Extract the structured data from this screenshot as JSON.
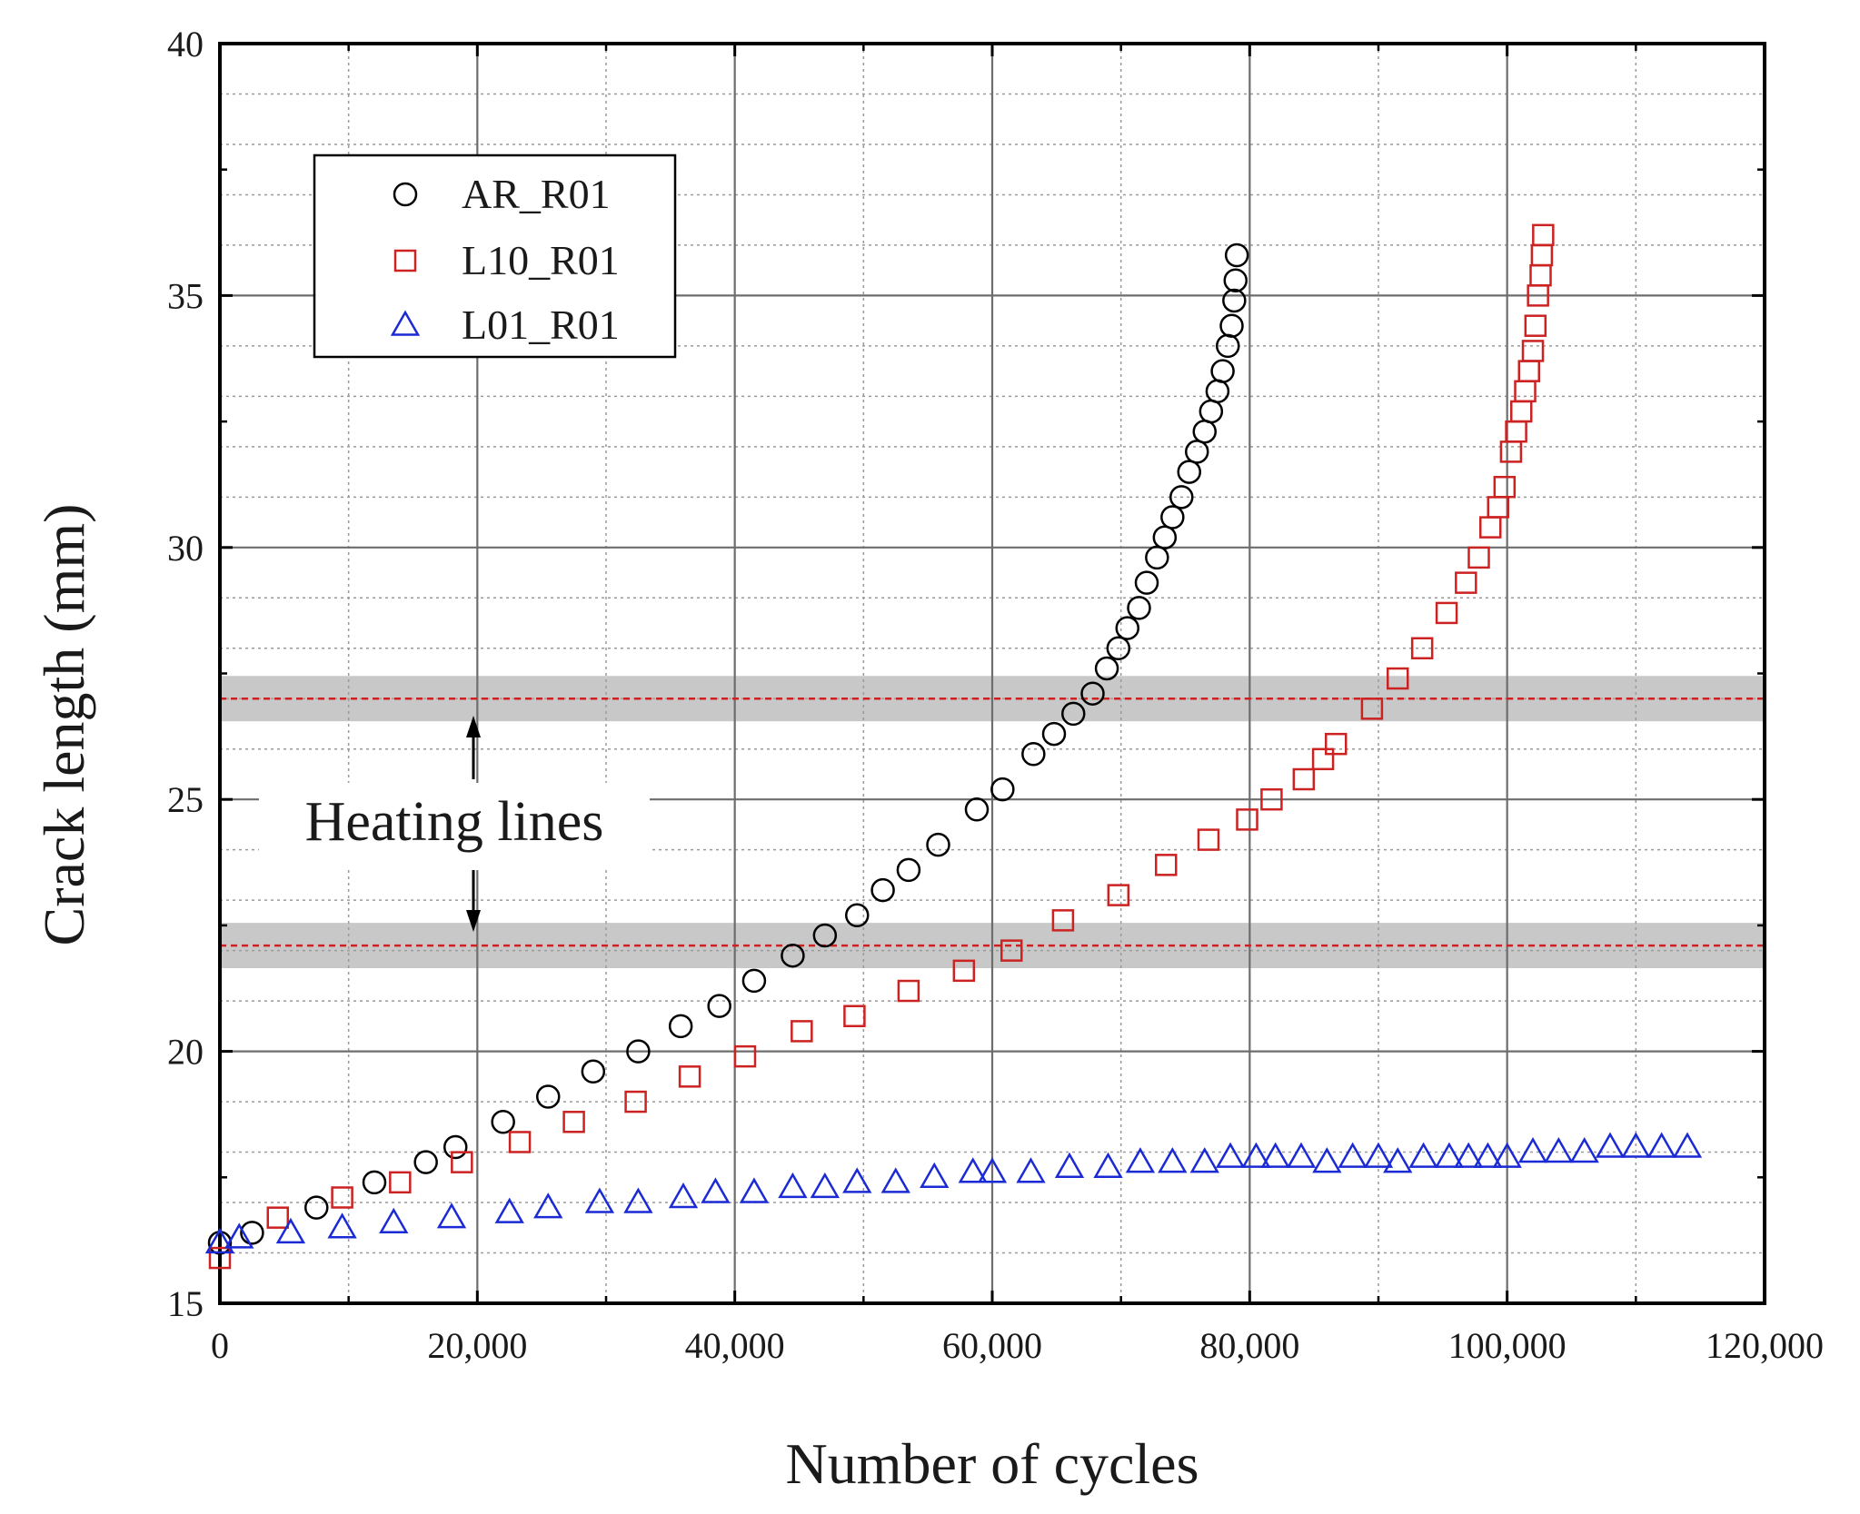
{
  "chart_data": {
    "type": "scatter",
    "title": "",
    "xlabel": "Number of cycles",
    "ylabel": "Crack length (mm)",
    "xlim": [
      0,
      120000
    ],
    "ylim": [
      15,
      40
    ],
    "xticks": [
      0,
      20000,
      40000,
      60000,
      80000,
      100000,
      120000
    ],
    "xtick_labels": [
      "0",
      "20,000",
      "40,000",
      "60,000",
      "80,000",
      "100,000",
      "120,000"
    ],
    "yticks": [
      15,
      20,
      25,
      30,
      35,
      40
    ],
    "ytick_labels": [
      "15",
      "20",
      "25",
      "30",
      "35",
      "40"
    ],
    "grid": true,
    "legend_position": "top-left",
    "heating_lines": {
      "label": "Heating lines",
      "values": [
        22.1,
        27.0
      ],
      "color": "#cc2222",
      "band_color": "#c8c8c8"
    },
    "series": [
      {
        "name": "AR_R01",
        "marker": "circle",
        "color": "#000000",
        "x": [
          0,
          2500,
          7500,
          12000,
          16000,
          18300,
          22000,
          25500,
          29000,
          32500,
          35800,
          38800,
          41500,
          44500,
          47000,
          49500,
          51500,
          53500,
          55800,
          58800,
          60800,
          63200,
          64800,
          66300,
          67800,
          68900,
          69800,
          70500,
          71400,
          72000,
          72800,
          73400,
          74000,
          74700,
          75300,
          75900,
          76500,
          77000,
          77500,
          77900,
          78300,
          78600,
          78800,
          78900,
          79000
        ],
        "y": [
          16.2,
          16.4,
          16.9,
          17.4,
          17.8,
          18.1,
          18.6,
          19.1,
          19.6,
          20.0,
          20.5,
          20.9,
          21.4,
          21.9,
          22.3,
          22.7,
          23.2,
          23.6,
          24.1,
          24.8,
          25.2,
          25.9,
          26.3,
          26.7,
          27.1,
          27.6,
          28.0,
          28.4,
          28.8,
          29.3,
          29.8,
          30.2,
          30.6,
          31.0,
          31.5,
          31.9,
          32.3,
          32.7,
          33.1,
          33.5,
          34.0,
          34.4,
          34.9,
          35.3,
          35.8
        ]
      },
      {
        "name": "L10_R01",
        "marker": "square",
        "color": "#cc2222",
        "x": [
          0,
          4500,
          9500,
          14000,
          18800,
          23300,
          27500,
          32300,
          36500,
          40800,
          45200,
          49300,
          53500,
          57800,
          61500,
          65500,
          69800,
          73500,
          76800,
          79800,
          81700,
          84200,
          85700,
          86700,
          89500,
          91500,
          93400,
          95300,
          96800,
          97800,
          98700,
          99300,
          99800,
          100300,
          100700,
          101100,
          101400,
          101700,
          102000,
          102200,
          102400,
          102600,
          102700,
          102800
        ],
        "y": [
          15.9,
          16.7,
          17.1,
          17.4,
          17.8,
          18.2,
          18.6,
          19.0,
          19.5,
          19.9,
          20.4,
          20.7,
          21.2,
          21.6,
          22.0,
          22.6,
          23.1,
          23.7,
          24.2,
          24.6,
          25.0,
          25.4,
          25.8,
          26.1,
          26.8,
          27.4,
          28.0,
          28.7,
          29.3,
          29.8,
          30.4,
          30.8,
          31.2,
          31.9,
          32.3,
          32.7,
          33.1,
          33.5,
          33.9,
          34.4,
          35.0,
          35.4,
          35.8,
          36.2
        ]
      },
      {
        "name": "L01_R01",
        "marker": "triangle",
        "color": "#1a2ad4",
        "x": [
          0,
          1500,
          5500,
          9500,
          13500,
          18000,
          22500,
          25500,
          29500,
          32500,
          36000,
          38500,
          41500,
          44500,
          47000,
          49500,
          52500,
          55500,
          58500,
          60000,
          63000,
          66000,
          69000,
          71500,
          74000,
          76500,
          78500,
          80500,
          82000,
          84000,
          86000,
          88000,
          90000,
          91500,
          93500,
          95500,
          97000,
          98500,
          100000,
          102000,
          104000,
          106000,
          108000,
          110000,
          112000,
          114000
        ],
        "y": [
          16.2,
          16.3,
          16.4,
          16.5,
          16.6,
          16.7,
          16.8,
          16.9,
          17.0,
          17.0,
          17.1,
          17.2,
          17.2,
          17.3,
          17.3,
          17.4,
          17.4,
          17.5,
          17.6,
          17.6,
          17.6,
          17.7,
          17.7,
          17.8,
          17.8,
          17.8,
          17.9,
          17.9,
          17.9,
          17.9,
          17.8,
          17.9,
          17.9,
          17.8,
          17.9,
          17.9,
          17.9,
          17.9,
          17.9,
          18.0,
          18.0,
          18.0,
          18.1,
          18.1,
          18.1,
          18.1
        ]
      }
    ]
  }
}
